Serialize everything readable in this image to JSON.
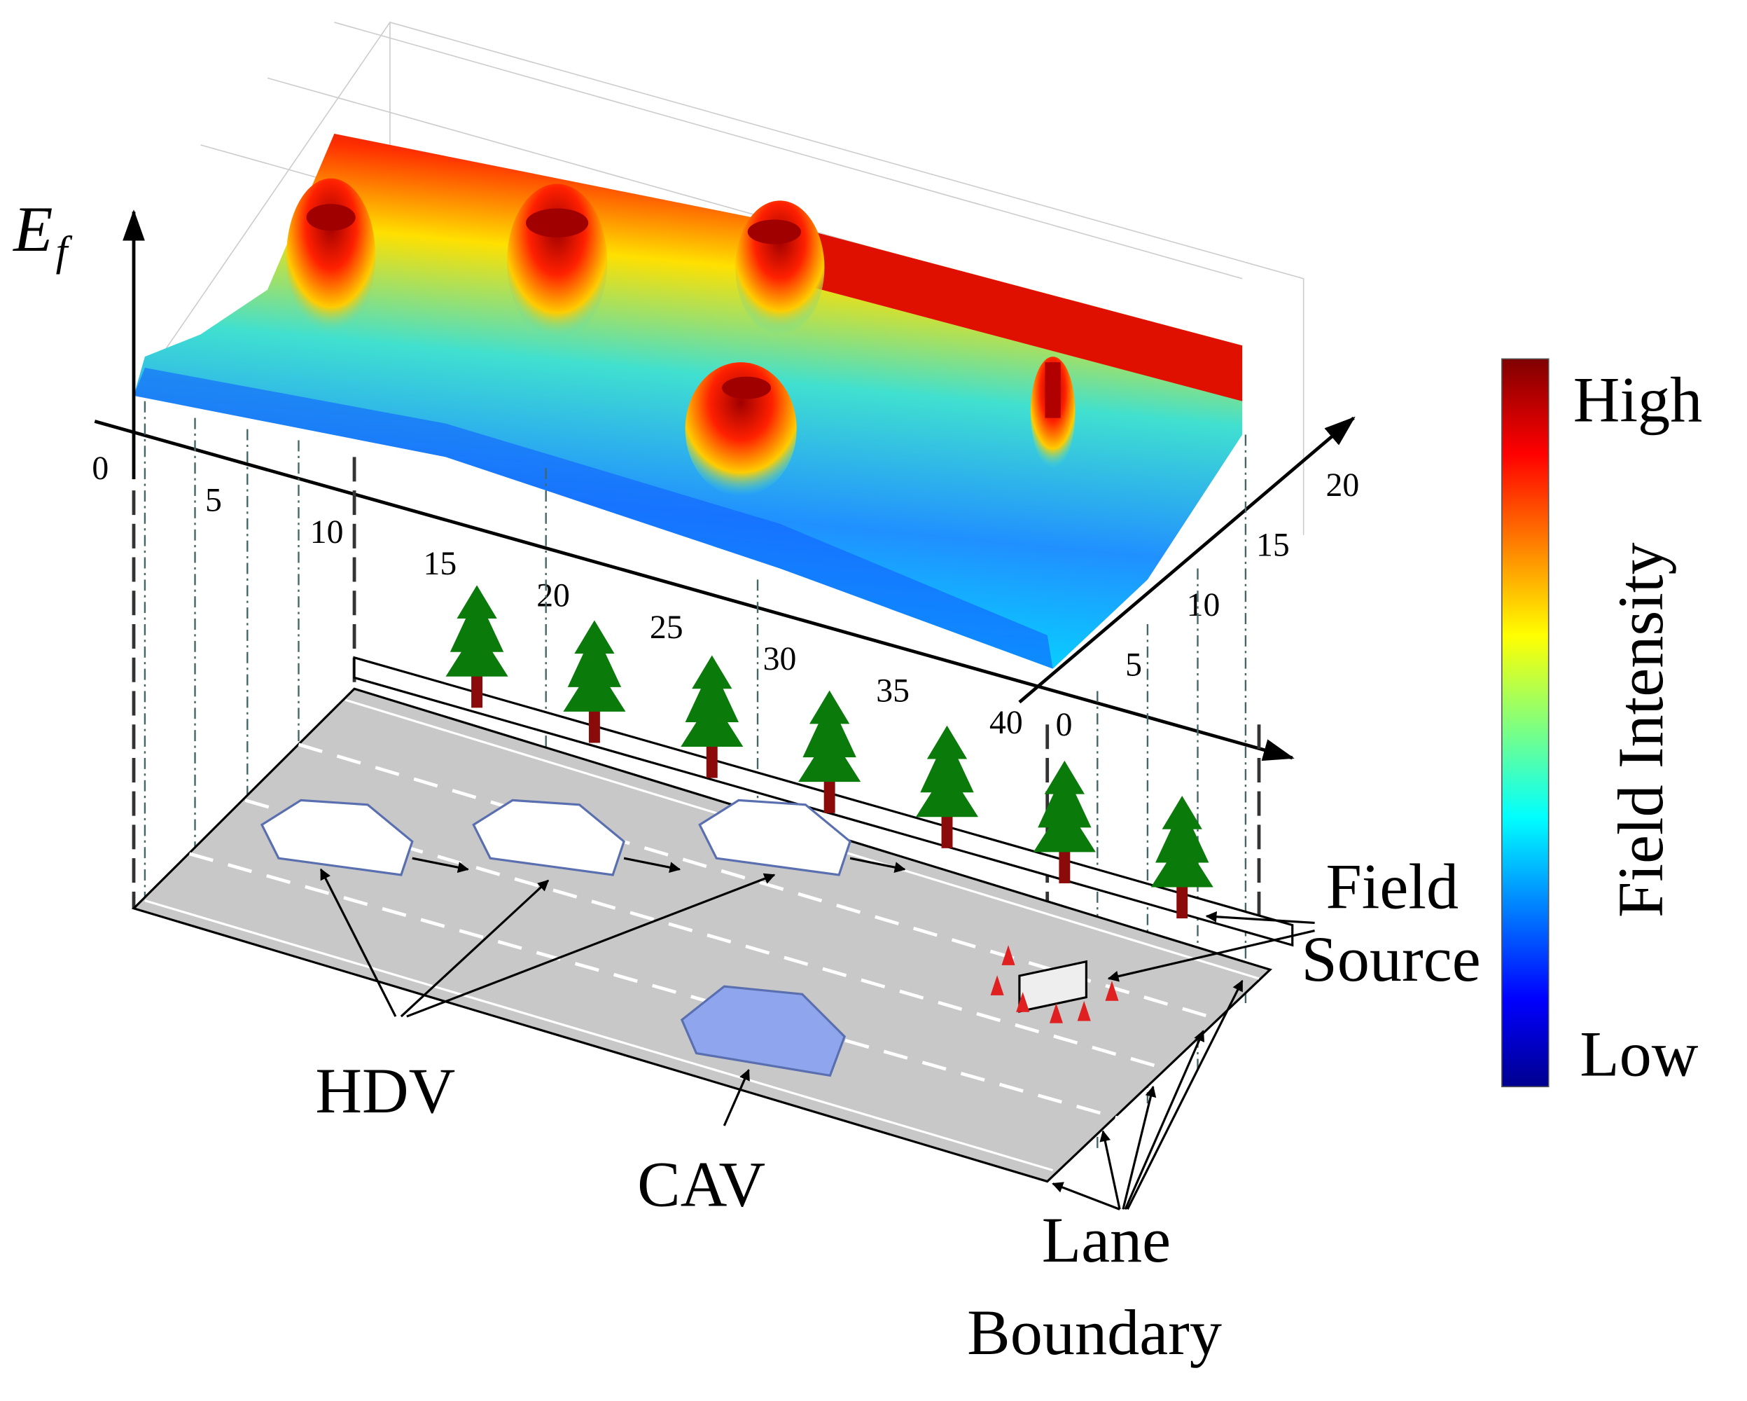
{
  "axis_label": {
    "main": "E",
    "sub": "f"
  },
  "x_axis": {
    "ticks": [
      0,
      5,
      10,
      15,
      20,
      25,
      30,
      35,
      40
    ]
  },
  "y_axis": {
    "ticks": [
      0,
      5,
      10,
      15,
      20
    ]
  },
  "colorbar": {
    "high": "High",
    "low": "Low",
    "title": "Field Intensity"
  },
  "labels": {
    "field_source": [
      "Field",
      "Source"
    ],
    "hdv": "HDV",
    "cav": "CAV",
    "lane_boundary": [
      "Lane",
      "Boundary"
    ]
  }
}
